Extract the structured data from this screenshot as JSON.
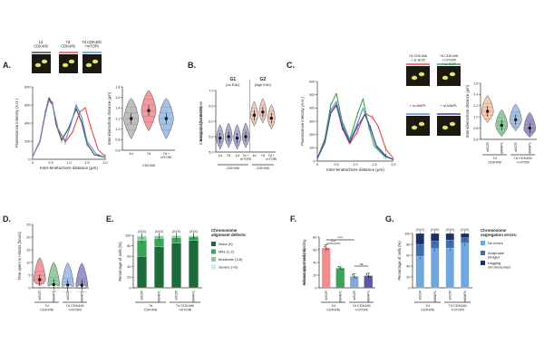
{
  "panels": {
    "A": {
      "label": "A.",
      "micro_labels": [
        "1d\nCDK4/6i",
        "7d\nCDK4/6i",
        "7d CDK4/6i\n+mTORi"
      ],
      "line": {
        "ylabel": "Fluorescence intensity (A.U.)",
        "xlabel": "Inter-kinetochore distance (μm)",
        "xticks": [
          "0",
          "0.5",
          "1.0",
          "1.5",
          "2.0"
        ],
        "yticks": [
          "0",
          "200",
          "400",
          "600",
          "800"
        ]
      },
      "violin": {
        "ylabel": "Inter-kinetochore distance (μm)",
        "yticks": [
          "0.6",
          "0.8",
          "1.0",
          "1.2",
          "1.4",
          "1.6",
          "1.8"
        ],
        "categories": [
          "1d",
          "7d",
          "7d +\nmTORi"
        ]
      }
    },
    "B": {
      "label": "B.",
      "ylabel": "Integrated fluorescence\nintensity (Log10 DAPI)",
      "group_titles": [
        "G1",
        "G2"
      ],
      "group_subtitles": [
        "(no EdU)",
        "(high EdU)"
      ],
      "yticks": [
        "5.0",
        "5.5",
        "6.0",
        "6.5",
        "7.0"
      ],
      "categories": [
        "1d",
        "7d",
        "1d",
        "7d +\nmTORi",
        "1d",
        "7d",
        "7d +\nmTORi"
      ],
      "footer": "CDK4/6i"
    },
    "C": {
      "label": "C.",
      "line": {
        "ylabel": "Fluorescence intensity (A.U.)",
        "xlabel": "Inter-kinetochore distance (μm)",
        "xticks": [
          "0",
          "0.5",
          "1.0",
          "1.5",
          "2.0"
        ],
        "yticks": [
          "0",
          "100",
          "200",
          "300",
          "400",
          "500",
          "600"
        ]
      },
      "micro_labels": [
        "7d CDK4/6i\n+ si-SCR",
        "7d CDK4/6i\n+ mTORi\n+ si-SCR",
        "+ si-WAPL",
        "+ si-WAPL"
      ],
      "violin": {
        "ylabel": "Inter-kinetochore distance (μm)",
        "yticks": [
          "0.6",
          "0.8",
          "1.0",
          "1.2",
          "1.4",
          "1.6"
        ],
        "categories": [
          "siSCR",
          "siWAPL",
          "siSCR",
          "siWAPL"
        ],
        "groups": [
          "7d\nCDK4/6i",
          "7d CDK4/6i\n+mTORi"
        ]
      }
    },
    "D": {
      "label": "D.",
      "ylabel": "Time spent in mitosis (hours)",
      "yticks": [
        "0",
        "5",
        "10",
        "15",
        "20",
        "25"
      ],
      "categories": [
        "siSCR",
        "siWAPL",
        "siSCR",
        "siWAPL"
      ],
      "groups": [
        "7d\nCDK4/6i",
        "7d CDK4/6i\n+mTORi"
      ]
    },
    "E": {
      "label": "E.",
      "ylabel": "Percentage of cells (%)",
      "yticks": [
        "0",
        "20",
        "40",
        "60",
        "80",
        "100"
      ],
      "counts": [
        "(XXX)",
        "(XXX)",
        "(XXX)",
        "(XXX)"
      ],
      "categories": [
        "siSCR",
        "siWAPL",
        "siSCR",
        "siWAPL"
      ],
      "groups": [
        "7d\nCDK4/6i",
        "7d CDK4/6i\n+mTORi"
      ],
      "legend_title": "Chromosome\nalignment defects:",
      "legend": [
        "None (0)",
        "Mild (1-2)",
        "Moderate (3-6)",
        "Severe (>6)"
      ]
    },
    "F": {
      "label": "F.",
      "ylabel": "Percentage of cells dividing\nwithout alignment (%)",
      "yticks": [
        "0",
        "20",
        "40",
        "60",
        "80"
      ],
      "significance": [
        "****",
        "****",
        "ns"
      ],
      "categories": [
        "siSCR",
        "siWAPL",
        "siSCR",
        "siWAPL"
      ],
      "groups": [
        "7d\nCDK4/6i",
        "7d CDK4/6i\n+mTORi"
      ]
    },
    "G": {
      "label": "G.",
      "ylabel": "Percentage of cells (%)",
      "yticks": [
        "0",
        "20",
        "40",
        "60",
        "80",
        "100"
      ],
      "counts": [
        "(XXX)",
        "(XXX)",
        "(XXX)",
        "(XXX)"
      ],
      "categories": [
        "siSCR",
        "siWAPL",
        "siSCR",
        "siWAPL"
      ],
      "groups": [
        "7d\nCDK4/6i",
        "7d CDK4/6i\n+mTORi"
      ],
      "legend_title": "Chromosome\nsegregation errors:",
      "legend": [
        "No errors",
        "Anaphase\nbridges",
        "Lagging\nchromosomes"
      ]
    }
  },
  "chart_data": [
    {
      "type": "line",
      "id": "A-line",
      "xlabel": "Inter-kinetochore distance (μm)",
      "ylabel": "Fluorescence intensity (A.U.)",
      "xlim": [
        0,
        2.0
      ],
      "ylim": [
        0,
        800
      ],
      "series": [
        {
          "color": "#444444",
          "x": [
            0.0,
            0.2,
            0.35,
            0.45,
            0.55,
            0.65,
            0.8,
            1.0,
            1.2,
            1.35,
            1.5,
            1.7,
            2.0
          ],
          "y": [
            30,
            200,
            520,
            680,
            610,
            380,
            210,
            350,
            560,
            410,
            170,
            50,
            20
          ]
        },
        {
          "color": "#e8484f",
          "x": [
            0.0,
            0.2,
            0.35,
            0.45,
            0.55,
            0.7,
            0.9,
            1.1,
            1.3,
            1.45,
            1.6,
            1.8,
            2.0
          ],
          "y": [
            30,
            190,
            500,
            650,
            600,
            330,
            190,
            300,
            520,
            570,
            360,
            110,
            30
          ]
        },
        {
          "color": "#5b8fd0",
          "x": [
            0.0,
            0.2,
            0.35,
            0.45,
            0.55,
            0.7,
            0.9,
            1.05,
            1.2,
            1.35,
            1.5,
            1.75,
            2.0
          ],
          "y": [
            30,
            200,
            510,
            660,
            600,
            340,
            200,
            380,
            600,
            470,
            200,
            60,
            20
          ]
        }
      ]
    },
    {
      "type": "violin",
      "id": "A-violin",
      "categories": [
        "1d",
        "7d",
        "7d + mTORi"
      ],
      "medians": [
        1.2,
        1.35,
        1.2
      ],
      "ylim": [
        0.6,
        1.8
      ],
      "colors": [
        "#888888",
        "#e8484f",
        "#5b8fd0"
      ]
    },
    {
      "type": "violin",
      "id": "B-violin",
      "categories": [
        "1d",
        "7d",
        "1d",
        "7d + mTORi",
        "1d",
        "7d",
        "7d + mTORi"
      ],
      "medians": [
        5.45,
        5.5,
        5.45,
        5.5,
        6.2,
        6.3,
        6.1
      ],
      "ylim": [
        5.0,
        7.0
      ],
      "colors": [
        "#6a6fb5",
        "#6a6fb5",
        "#6a6fb5",
        "#6a6fb5",
        "#e8a090",
        "#e8a090",
        "#e8a090"
      ]
    },
    {
      "type": "line",
      "id": "C-line",
      "xlim": [
        0,
        2.0
      ],
      "ylim": [
        0,
        600
      ],
      "series": [
        {
          "color": "#e8484f",
          "x": [
            0.0,
            0.2,
            0.35,
            0.5,
            0.65,
            0.85,
            1.05,
            1.25,
            1.45,
            1.6,
            1.8,
            2.0
          ],
          "y": [
            20,
            150,
            360,
            430,
            250,
            130,
            220,
            360,
            330,
            260,
            90,
            20
          ]
        },
        {
          "color": "#3aa655",
          "x": [
            0.0,
            0.2,
            0.35,
            0.5,
            0.65,
            0.85,
            1.05,
            1.2,
            1.35,
            1.5,
            1.75,
            2.0
          ],
          "y": [
            20,
            170,
            420,
            510,
            300,
            160,
            350,
            470,
            260,
            110,
            40,
            10
          ]
        },
        {
          "color": "#5b8fd0",
          "x": [
            0.0,
            0.2,
            0.35,
            0.5,
            0.65,
            0.85,
            1.05,
            1.2,
            1.35,
            1.55,
            1.8,
            2.0
          ],
          "y": [
            20,
            150,
            380,
            450,
            280,
            150,
            280,
            400,
            280,
            120,
            40,
            10
          ]
        },
        {
          "color": "#4b3f9a",
          "x": [
            0.0,
            0.2,
            0.35,
            0.5,
            0.65,
            0.85,
            1.05,
            1.25,
            1.4,
            1.55,
            1.8,
            2.0
          ],
          "y": [
            20,
            140,
            360,
            420,
            260,
            140,
            260,
            350,
            250,
            110,
            35,
            10
          ]
        }
      ]
    },
    {
      "type": "violin",
      "id": "C-violin",
      "categories": [
        "siSCR",
        "siWAPL",
        "siSCR",
        "siWAPL"
      ],
      "medians": [
        1.1,
        0.85,
        0.95,
        0.8
      ],
      "ylim": [
        0.6,
        1.6
      ],
      "colors": [
        "#f0a070",
        "#3aa655",
        "#5b8fd0",
        "#4b3f9a"
      ]
    },
    {
      "type": "violin",
      "id": "D-violin",
      "categories": [
        "siSCR",
        "siWAPL",
        "siSCR",
        "siWAPL"
      ],
      "medians": [
        3.2,
        1.3,
        1.1,
        1.0
      ],
      "ylim": [
        0,
        25
      ],
      "colors": [
        "#e8484f",
        "#3aa655",
        "#5b8fd0",
        "#4b3f9a"
      ]
    },
    {
      "type": "bar",
      "id": "E-stacked",
      "categories": [
        "siSCR",
        "siWAPL",
        "siSCR",
        "siWAPL"
      ],
      "series": [
        {
          "name": "None (0)",
          "color": "#1d6b3a",
          "values": [
            60,
            78,
            85,
            90
          ]
        },
        {
          "name": "Mild (1-2)",
          "color": "#3aa655",
          "values": [
            30,
            16,
            10,
            7
          ]
        },
        {
          "name": "Moderate (3-6)",
          "color": "#88cf97",
          "values": [
            8,
            5,
            4,
            2
          ]
        },
        {
          "name": "Severe (>6)",
          "color": "#d4ecd7",
          "values": [
            2,
            1,
            1,
            1
          ]
        }
      ],
      "ylim": [
        0,
        100
      ]
    },
    {
      "type": "bar",
      "id": "F-bar",
      "categories": [
        "siSCR",
        "siWAPL",
        "siSCR",
        "siWAPL"
      ],
      "values": [
        63,
        31,
        18,
        19
      ],
      "errors": [
        5,
        2,
        4,
        4
      ],
      "colors": [
        "#f28b8b",
        "#3aa655",
        "#7ea8d8",
        "#5a59a8"
      ],
      "ylim": [
        0,
        80
      ]
    },
    {
      "type": "bar",
      "id": "G-stacked",
      "categories": [
        "siSCR",
        "siWAPL",
        "siSCR",
        "siWAPL"
      ],
      "series": [
        {
          "name": "No errors",
          "color": "#6fa6dc",
          "values": [
            58,
            72,
            73,
            82
          ]
        },
        {
          "name": "Anaphase bridges",
          "color": "#3d6fb0",
          "values": [
            22,
            14,
            15,
            10
          ]
        },
        {
          "name": "Lagging chromosomes",
          "color": "#1f2f6b",
          "values": [
            20,
            14,
            12,
            8
          ]
        }
      ],
      "ylim": [
        0,
        100
      ]
    }
  ]
}
